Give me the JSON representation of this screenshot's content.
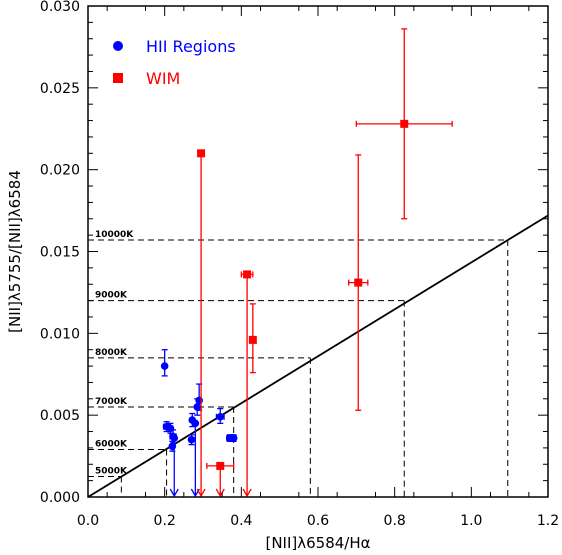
{
  "chart_data": {
    "type": "scatter",
    "xlabel": "[NII]λ6584/Hα",
    "ylabel": "[NII]λ5755/[NII]λ6584",
    "xlim": [
      0.0,
      1.2
    ],
    "ylim": [
      0.0,
      0.03
    ],
    "x_ticks": [
      0.0,
      0.2,
      0.4,
      0.6,
      0.8,
      1.0,
      1.2
    ],
    "x_tick_labels": [
      "0.0",
      "0.2",
      "0.4",
      "0.6",
      "0.8",
      "1.0",
      "1.2"
    ],
    "y_ticks": [
      0.0,
      0.005,
      0.01,
      0.015,
      0.02,
      0.025,
      0.03
    ],
    "y_tick_labels": [
      "0.000",
      "0.005",
      "0.010",
      "0.015",
      "0.020",
      "0.025",
      "0.030"
    ],
    "grid": false,
    "legend_position": "top-left",
    "trend_line": {
      "points": [
        [
          0.0,
          0.0
        ],
        [
          1.2,
          0.0172
        ]
      ],
      "color": "#000000"
    },
    "temperature_lines": [
      {
        "label": "5000K",
        "y": 0.00125,
        "x": 0.087
      },
      {
        "label": "6000K",
        "y": 0.0029,
        "x": 0.205
      },
      {
        "label": "7000K",
        "y": 0.0055,
        "x": 0.38
      },
      {
        "label": "8000K",
        "y": 0.0085,
        "x": 0.58
      },
      {
        "label": "9000K",
        "y": 0.012,
        "x": 0.825
      },
      {
        "label": "10000K",
        "y": 0.0157,
        "x": 1.095
      }
    ],
    "series": [
      {
        "name": "HII Regions",
        "color": "#0000ff",
        "marker": "circle",
        "points": [
          {
            "x": 0.2,
            "y": 0.008,
            "yerr_lo": 0.0006,
            "yerr_hi": 0.001
          },
          {
            "x": 0.205,
            "y": 0.0043,
            "xerr": 0.008,
            "yerr_lo": 0.0003,
            "yerr_hi": 0.0003
          },
          {
            "x": 0.215,
            "y": 0.0042,
            "yerr_lo": 0.0003,
            "yerr_hi": 0.0003
          },
          {
            "x": 0.22,
            "y": 0.0031,
            "yerr_lo": 0.0003,
            "yerr_hi": 0.0003
          },
          {
            "x": 0.222,
            "y": 0.0037,
            "xerr": 0.008,
            "yerr_lo": 0.0004,
            "yerr_hi": 0.0004
          },
          {
            "x": 0.225,
            "y": 0.0036,
            "upper_limit": true
          },
          {
            "x": 0.27,
            "y": 0.0035,
            "yerr_lo": 0.0003,
            "yerr_hi": 0.0003
          },
          {
            "x": 0.272,
            "y": 0.0047,
            "yerr_lo": 0.0004,
            "yerr_hi": 0.0004
          },
          {
            "x": 0.28,
            "y": 0.0045,
            "upper_limit": true
          },
          {
            "x": 0.285,
            "y": 0.0055,
            "yerr_lo": 0.0005,
            "yerr_hi": 0.0005
          },
          {
            "x": 0.29,
            "y": 0.0059,
            "yerr_lo": 0.0006,
            "yerr_hi": 0.001
          },
          {
            "x": 0.345,
            "y": 0.0049,
            "xerr": 0.01,
            "yerr_lo": 0.0004,
            "yerr_hi": 0.0005
          },
          {
            "x": 0.37,
            "y": 0.0036,
            "xerr": 0.008,
            "yerr_lo": 0.0002,
            "yerr_hi": 0.0002
          },
          {
            "x": 0.38,
            "y": 0.0036,
            "yerr_lo": 0.0002,
            "yerr_hi": 0.0002
          }
        ]
      },
      {
        "name": "WIM",
        "color": "#ff0000",
        "marker": "square",
        "points": [
          {
            "x": 0.295,
            "y": 0.021,
            "upper_limit": true
          },
          {
            "x": 0.345,
            "y": 0.0019,
            "xerr": 0.035,
            "upper_limit": true
          },
          {
            "x": 0.415,
            "y": 0.0136,
            "xerr": 0.015,
            "upper_limit": true
          },
          {
            "x": 0.43,
            "y": 0.0096,
            "yerr_lo": 0.002,
            "yerr_hi": 0.0022
          },
          {
            "x": 0.705,
            "y": 0.0131,
            "xerr": 0.025,
            "yerr_lo": 0.0078,
            "yerr_hi": 0.0078
          },
          {
            "x": 0.825,
            "y": 0.0228,
            "xerr": 0.125,
            "yerr_lo": 0.0058,
            "yerr_hi": 0.0058
          }
        ]
      }
    ]
  }
}
